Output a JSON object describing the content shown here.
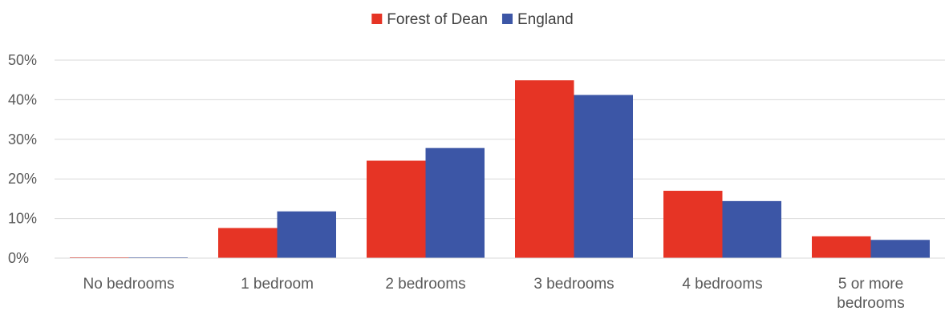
{
  "chart_data": {
    "type": "bar",
    "title": "",
    "xlabel": "",
    "ylabel": "",
    "categories": [
      [
        "No bedrooms"
      ],
      [
        "1 bedroom"
      ],
      [
        "2 bedrooms"
      ],
      [
        "3 bedrooms"
      ],
      [
        "4 bedrooms"
      ],
      [
        "5 or more",
        "bedrooms"
      ]
    ],
    "series": [
      {
        "name": "Forest of Dean",
        "color": "#e63425",
        "values": [
          0.2,
          7.6,
          24.6,
          44.9,
          17.0,
          5.5
        ]
      },
      {
        "name": "England",
        "color": "#3c56a6",
        "values": [
          0.2,
          11.8,
          27.8,
          41.2,
          14.4,
          4.6
        ]
      }
    ],
    "yticks": [
      "0%",
      "10%",
      "20%",
      "30%",
      "40%",
      "50%"
    ],
    "ylim": [
      0,
      50
    ],
    "grid": true,
    "legend_position": "top-center"
  }
}
